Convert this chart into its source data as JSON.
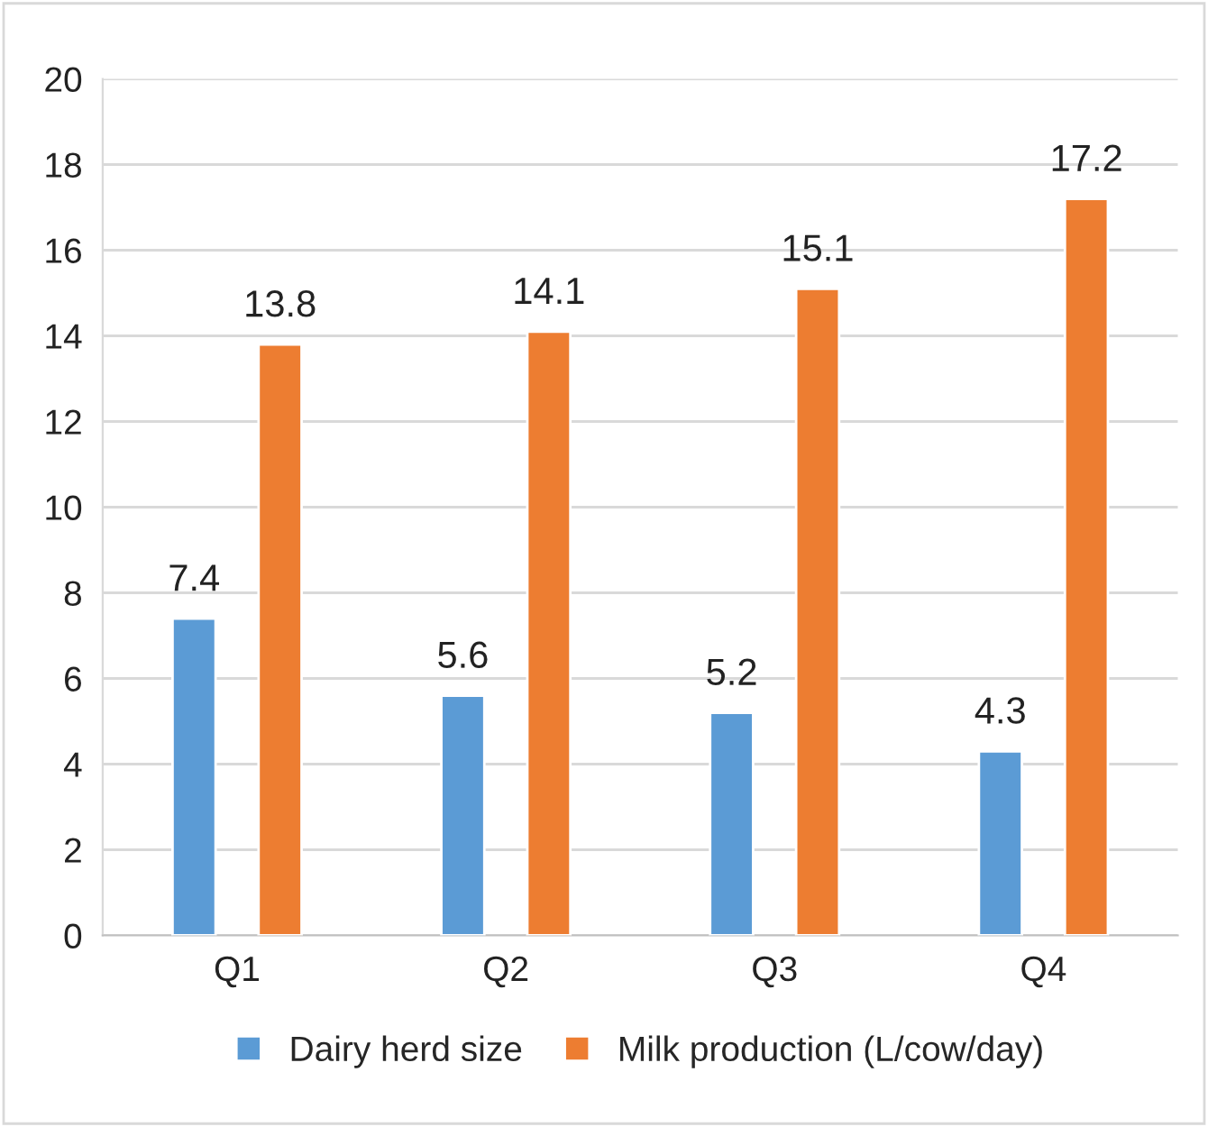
{
  "chart_data": {
    "type": "bar",
    "categories": [
      "Q1",
      "Q2",
      "Q3",
      "Q4"
    ],
    "series": [
      {
        "name": "Dairy herd size",
        "color": "#5b9bd5",
        "values": [
          7.4,
          5.6,
          5.2,
          4.3
        ]
      },
      {
        "name": "Milk production (L/cow/day)",
        "color": "#ed7d31",
        "values": [
          13.8,
          14.1,
          15.1,
          17.2
        ]
      }
    ],
    "ylim": [
      0,
      20
    ],
    "yticks": [
      0,
      2,
      4,
      6,
      8,
      10,
      12,
      14,
      16,
      18,
      20
    ],
    "grid": "y",
    "legend": "bottom",
    "data_labels": true
  }
}
